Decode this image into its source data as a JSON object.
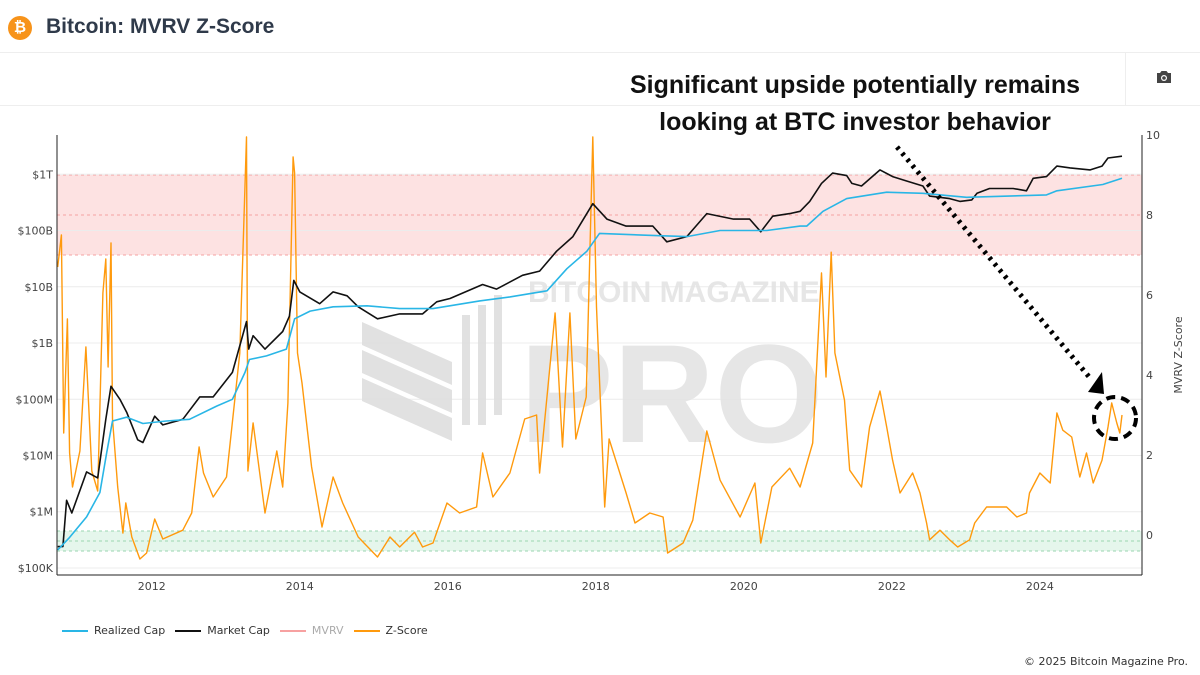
{
  "header": {
    "title": "Bitcoin: MVRV Z-Score",
    "icon": "bitcoin-icon",
    "icon_glyph": "₿"
  },
  "toolbar": {
    "camera_icon": "camera-icon"
  },
  "annotation": {
    "line1": "Significant upside potentially remains",
    "line2": "looking at BTC investor behavior"
  },
  "watermark": {
    "line1": "BITCOIN MAGAZINE",
    "line2": "PRO"
  },
  "legend": [
    {
      "label": "Realized Cap",
      "color": "#29b6e6",
      "active": true
    },
    {
      "label": "Market Cap",
      "color": "#111111",
      "active": true
    },
    {
      "label": "MVRV",
      "color": "#f7a1a1",
      "active": false
    },
    {
      "label": "Z-Score",
      "color": "#ff9a0d",
      "active": true
    }
  ],
  "footer": "© 2025 Bitcoin Magazine Pro.",
  "chart_data": {
    "type": "line",
    "title": "",
    "xlabel": "",
    "ylabel_left": "",
    "ylabel_right": "MVRV Z-Score",
    "xlim": [
      2010.72,
      2025.38
    ],
    "x_ticks": [
      "2012",
      "2014",
      "2016",
      "2018",
      "2020",
      "2022",
      "2024"
    ],
    "y_left": {
      "scale": "log",
      "ylim": [
        75000,
        5000000000000
      ],
      "ticks": [
        {
          "value": 100000.0,
          "label": "$100K"
        },
        {
          "value": 1000000.0,
          "label": "$1M"
        },
        {
          "value": 10000000.0,
          "label": "$10M"
        },
        {
          "value": 100000000.0,
          "label": "$100M"
        },
        {
          "value": 1000000000.0,
          "label": "$1B"
        },
        {
          "value": 10000000000.0,
          "label": "$10B"
        },
        {
          "value": 100000000000.0,
          "label": "$100B"
        },
        {
          "value": 1000000000000.0,
          "label": "$1T"
        }
      ]
    },
    "y_right": {
      "scale": "linear",
      "ylim": [
        -1,
        10
      ],
      "ticks": [
        "0",
        "2",
        "4",
        "6",
        "8",
        "10"
      ]
    },
    "zones": [
      {
        "axis": "right",
        "from": 7,
        "to": 9,
        "color": "#fde2e2"
      },
      {
        "axis": "right",
        "from": -0.4,
        "to": 0.1,
        "color": "#e5f6ec"
      }
    ],
    "grid": true,
    "legend_position": "bottom-left",
    "series": [
      {
        "name": "Z-Score",
        "axis": "right",
        "color": "#ff9a0d",
        "points": [
          [
            2010.73,
            6.7
          ],
          [
            2010.78,
            7.5
          ],
          [
            2010.81,
            2.55
          ],
          [
            2010.86,
            5.4
          ],
          [
            2010.89,
            2.05
          ],
          [
            2010.93,
            1.2
          ],
          [
            2011.03,
            2.1
          ],
          [
            2011.11,
            4.7
          ],
          [
            2011.19,
            1.6
          ],
          [
            2011.27,
            1.1
          ],
          [
            2011.34,
            6.05
          ],
          [
            2011.38,
            6.9
          ],
          [
            2011.41,
            4.2
          ],
          [
            2011.45,
            7.3
          ],
          [
            2011.47,
            2.9
          ],
          [
            2011.54,
            1.2
          ],
          [
            2011.61,
            0.05
          ],
          [
            2011.65,
            0.8
          ],
          [
            2011.73,
            -0.05
          ],
          [
            2011.84,
            -0.6
          ],
          [
            2011.93,
            -0.45
          ],
          [
            2012.04,
            0.4
          ],
          [
            2012.15,
            -0.1
          ],
          [
            2012.42,
            0.12
          ],
          [
            2012.54,
            0.55
          ],
          [
            2012.64,
            2.2
          ],
          [
            2012.7,
            1.55
          ],
          [
            2012.83,
            0.95
          ],
          [
            2013.01,
            1.45
          ],
          [
            2013.19,
            4.55
          ],
          [
            2013.28,
            9.95
          ],
          [
            2013.3,
            1.6
          ],
          [
            2013.37,
            2.8
          ],
          [
            2013.53,
            0.55
          ],
          [
            2013.69,
            2.1
          ],
          [
            2013.77,
            1.2
          ],
          [
            2013.84,
            3.3
          ],
          [
            2013.91,
            9.45
          ],
          [
            2013.93,
            9.05
          ],
          [
            2013.97,
            4.55
          ],
          [
            2014.03,
            3.8
          ],
          [
            2014.16,
            1.7
          ],
          [
            2014.3,
            0.2
          ],
          [
            2014.45,
            1.45
          ],
          [
            2014.58,
            0.8
          ],
          [
            2014.79,
            -0.05
          ],
          [
            2015.05,
            -0.55
          ],
          [
            2015.22,
            -0.05
          ],
          [
            2015.35,
            -0.3
          ],
          [
            2015.55,
            0.07
          ],
          [
            2015.66,
            -0.3
          ],
          [
            2015.8,
            -0.2
          ],
          [
            2015.99,
            0.8
          ],
          [
            2016.16,
            0.55
          ],
          [
            2016.39,
            0.7
          ],
          [
            2016.47,
            2.05
          ],
          [
            2016.61,
            0.95
          ],
          [
            2016.84,
            1.55
          ],
          [
            2017.04,
            2.9
          ],
          [
            2017.2,
            3.0
          ],
          [
            2017.24,
            1.55
          ],
          [
            2017.45,
            5.55
          ],
          [
            2017.55,
            2.2
          ],
          [
            2017.65,
            5.55
          ],
          [
            2017.73,
            2.4
          ],
          [
            2017.87,
            3.45
          ],
          [
            2017.96,
            9.95
          ],
          [
            2018.01,
            5.7
          ],
          [
            2018.08,
            2.55
          ],
          [
            2018.12,
            0.7
          ],
          [
            2018.18,
            2.4
          ],
          [
            2018.41,
            1.05
          ],
          [
            2018.53,
            0.3
          ],
          [
            2018.73,
            0.55
          ],
          [
            2018.91,
            0.45
          ],
          [
            2018.97,
            -0.45
          ],
          [
            2019.18,
            -0.2
          ],
          [
            2019.31,
            0.37
          ],
          [
            2019.5,
            2.6
          ],
          [
            2019.68,
            1.37
          ],
          [
            2019.95,
            0.45
          ],
          [
            2020.15,
            1.3
          ],
          [
            2020.23,
            -0.2
          ],
          [
            2020.38,
            1.2
          ],
          [
            2020.62,
            1.67
          ],
          [
            2020.76,
            1.2
          ],
          [
            2020.93,
            2.3
          ],
          [
            2021.05,
            6.55
          ],
          [
            2021.11,
            3.95
          ],
          [
            2021.18,
            7.07
          ],
          [
            2021.23,
            4.55
          ],
          [
            2021.36,
            3.37
          ],
          [
            2021.43,
            1.62
          ],
          [
            2021.59,
            1.2
          ],
          [
            2021.7,
            2.7
          ],
          [
            2021.84,
            3.6
          ],
          [
            2021.93,
            2.7
          ],
          [
            2022.01,
            1.87
          ],
          [
            2022.11,
            1.05
          ],
          [
            2022.28,
            1.55
          ],
          [
            2022.38,
            1.05
          ],
          [
            2022.47,
            0.3
          ],
          [
            2022.51,
            -0.12
          ],
          [
            2022.65,
            0.12
          ],
          [
            2022.78,
            -0.12
          ],
          [
            2022.89,
            -0.3
          ],
          [
            2023.05,
            -0.12
          ],
          [
            2023.12,
            0.3
          ],
          [
            2023.28,
            0.7
          ],
          [
            2023.55,
            0.7
          ],
          [
            2023.69,
            0.45
          ],
          [
            2023.82,
            0.55
          ],
          [
            2023.86,
            1.05
          ],
          [
            2024.0,
            1.55
          ],
          [
            2024.14,
            1.3
          ],
          [
            2024.23,
            3.05
          ],
          [
            2024.31,
            2.62
          ],
          [
            2024.43,
            2.45
          ],
          [
            2024.54,
            1.45
          ],
          [
            2024.63,
            2.05
          ],
          [
            2024.72,
            1.3
          ],
          [
            2024.84,
            1.87
          ],
          [
            2024.92,
            2.7
          ],
          [
            2024.97,
            3.3
          ],
          [
            2025.04,
            2.8
          ],
          [
            2025.08,
            2.55
          ],
          [
            2025.11,
            3.0
          ]
        ]
      },
      {
        "name": "Market Cap",
        "axis": "left",
        "color": "#111111",
        "points": [
          [
            2010.73,
            240000.0
          ],
          [
            2010.8,
            240000.0
          ],
          [
            2010.85,
            1600000.0
          ],
          [
            2010.92,
            950000.0
          ],
          [
            2011.12,
            5100000.0
          ],
          [
            2011.27,
            4000000.0
          ],
          [
            2011.38,
            44000000.0
          ],
          [
            2011.45,
            170000000.0
          ],
          [
            2011.57,
            100000000.0
          ],
          [
            2011.66,
            59000000.0
          ],
          [
            2011.81,
            19000000.0
          ],
          [
            2011.88,
            17000000.0
          ],
          [
            2012.04,
            50000000.0
          ],
          [
            2012.15,
            35000000.0
          ],
          [
            2012.42,
            44000000.0
          ],
          [
            2012.65,
            110000000.0
          ],
          [
            2012.83,
            110000000.0
          ],
          [
            2013.09,
            300000000.0
          ],
          [
            2013.28,
            2400000000.0
          ],
          [
            2013.31,
            780000000.0
          ],
          [
            2013.37,
            1350000000.0
          ],
          [
            2013.53,
            780000000.0
          ],
          [
            2013.77,
            1600000000.0
          ],
          [
            2013.86,
            3000000000.0
          ],
          [
            2013.92,
            13000000000.0
          ],
          [
            2014.0,
            8100000000.0
          ],
          [
            2014.27,
            5000000000.0
          ],
          [
            2014.45,
            8100000000.0
          ],
          [
            2014.64,
            6900000000.0
          ],
          [
            2014.79,
            4400000000.0
          ],
          [
            2015.05,
            2700000000.0
          ],
          [
            2015.35,
            3300000000.0
          ],
          [
            2015.66,
            3300000000.0
          ],
          [
            2015.85,
            5400000000.0
          ],
          [
            2016.03,
            6200000000.0
          ],
          [
            2016.47,
            11000000000.0
          ],
          [
            2016.66,
            9100000000.0
          ],
          [
            2017.01,
            16000000000.0
          ],
          [
            2017.24,
            19000000000.0
          ],
          [
            2017.47,
            43000000000.0
          ],
          [
            2017.69,
            78000000000.0
          ],
          [
            2017.96,
            300000000000.0
          ],
          [
            2018.15,
            160000000000.0
          ],
          [
            2018.41,
            120000000000.0
          ],
          [
            2018.77,
            120000000000.0
          ],
          [
            2018.96,
            63000000000.0
          ],
          [
            2019.23,
            78000000000.0
          ],
          [
            2019.5,
            200000000000.0
          ],
          [
            2019.86,
            160000000000.0
          ],
          [
            2020.08,
            160000000000.0
          ],
          [
            2020.23,
            95000000000.0
          ],
          [
            2020.39,
            180000000000.0
          ],
          [
            2020.62,
            200000000000.0
          ],
          [
            2020.76,
            220000000000.0
          ],
          [
            2020.89,
            330000000000.0
          ],
          [
            2021.05,
            690000000000.0
          ],
          [
            2021.2,
            1050000000000.0
          ],
          [
            2021.39,
            950000000000.0
          ],
          [
            2021.46,
            690000000000.0
          ],
          [
            2021.59,
            620000000000.0
          ],
          [
            2021.84,
            1200000000000.0
          ],
          [
            2022.01,
            910000000000.0
          ],
          [
            2022.2,
            760000000000.0
          ],
          [
            2022.42,
            620000000000.0
          ],
          [
            2022.51,
            410000000000.0
          ],
          [
            2022.78,
            370000000000.0
          ],
          [
            2022.92,
            330000000000.0
          ],
          [
            2023.08,
            350000000000.0
          ],
          [
            2023.15,
            460000000000.0
          ],
          [
            2023.32,
            560000000000.0
          ],
          [
            2023.64,
            560000000000.0
          ],
          [
            2023.82,
            510000000000.0
          ],
          [
            2023.91,
            850000000000.0
          ],
          [
            2024.09,
            910000000000.0
          ],
          [
            2024.23,
            1400000000000.0
          ],
          [
            2024.41,
            1300000000000.0
          ],
          [
            2024.68,
            1200000000000.0
          ],
          [
            2024.84,
            1400000000000.0
          ],
          [
            2024.92,
            1950000000000.0
          ],
          [
            2025.11,
            2100000000000.0
          ]
        ]
      },
      {
        "name": "Realized Cap",
        "axis": "left",
        "color": "#29b6e6",
        "points": [
          [
            2010.73,
            210000.0
          ],
          [
            2010.89,
            350000.0
          ],
          [
            2011.12,
            810000.0
          ],
          [
            2011.3,
            2200000.0
          ],
          [
            2011.39,
            11000000.0
          ],
          [
            2011.47,
            41000000.0
          ],
          [
            2011.66,
            48000000.0
          ],
          [
            2011.88,
            37000000.0
          ],
          [
            2012.2,
            41000000.0
          ],
          [
            2012.51,
            44000000.0
          ],
          [
            2012.88,
            76000000.0
          ],
          [
            2013.09,
            100000000.0
          ],
          [
            2013.26,
            300000000.0
          ],
          [
            2013.32,
            510000000.0
          ],
          [
            2013.55,
            590000000.0
          ],
          [
            2013.82,
            780000000.0
          ],
          [
            2013.93,
            2700000000.0
          ],
          [
            2014.14,
            3700000000.0
          ],
          [
            2014.45,
            4400000000.0
          ],
          [
            2014.91,
            4600000000.0
          ],
          [
            2015.35,
            4100000000.0
          ],
          [
            2015.8,
            4100000000.0
          ],
          [
            2016.43,
            5600000000.0
          ],
          [
            2016.84,
            6600000000.0
          ],
          [
            2017.34,
            8500000000.0
          ],
          [
            2017.61,
            21000000000.0
          ],
          [
            2017.88,
            43000000000.0
          ],
          [
            2018.05,
            89000000000.0
          ],
          [
            2018.86,
            81000000000.0
          ],
          [
            2019.23,
            78000000000.0
          ],
          [
            2019.68,
            100000000000.0
          ],
          [
            2020.31,
            100000000000.0
          ],
          [
            2020.76,
            120000000000.0
          ],
          [
            2020.85,
            120000000000.0
          ],
          [
            2021.07,
            220000000000.0
          ],
          [
            2021.39,
            370000000000.0
          ],
          [
            2021.93,
            480000000000.0
          ],
          [
            2022.42,
            460000000000.0
          ],
          [
            2023.01,
            390000000000.0
          ],
          [
            2024.09,
            430000000000.0
          ],
          [
            2024.23,
            510000000000.0
          ],
          [
            2024.85,
            660000000000.0
          ],
          [
            2025.11,
            850000000000.0
          ]
        ]
      }
    ]
  }
}
